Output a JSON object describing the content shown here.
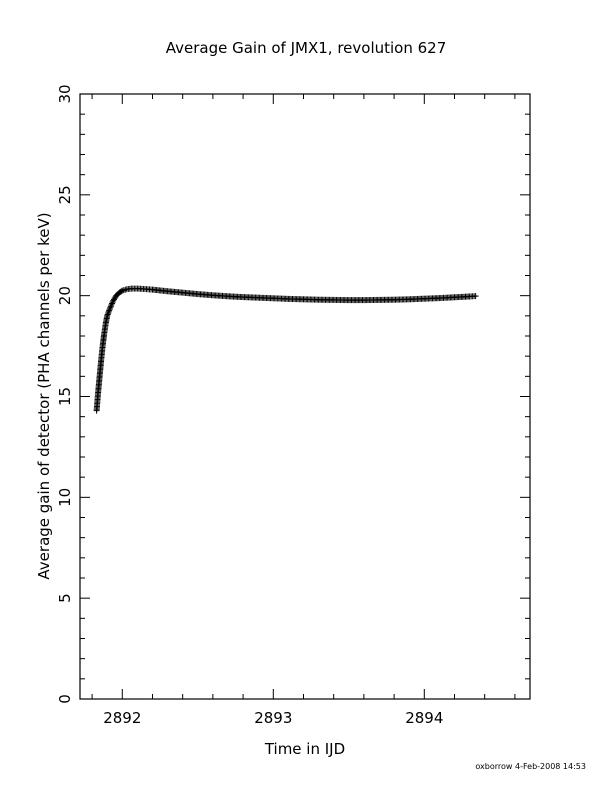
{
  "chart_data": {
    "type": "scatter",
    "title": "Average Gain of JMX1, revolution 627",
    "xlabel": "Time in IJD",
    "ylabel": "Average gain of detector (PHA channels per keV)",
    "xlim": [
      2891.72,
      2894.7
    ],
    "ylim": [
      0,
      30
    ],
    "x_ticks": [
      2892,
      2893,
      2894
    ],
    "x_tick_labels": [
      "2892",
      "2893",
      "2894"
    ],
    "y_ticks": [
      0,
      5,
      10,
      15,
      20,
      25,
      30
    ],
    "y_tick_labels": [
      "0",
      "5",
      "10",
      "15",
      "20",
      "25",
      "30"
    ],
    "x_minor_step": 0.2,
    "y_minor_step": 1,
    "marker": "plus",
    "grid": false,
    "legend": "none",
    "series": [
      {
        "x": [
          2891.83,
          2891.84,
          2891.85,
          2891.86,
          2891.87,
          2891.88,
          2891.89,
          2891.9,
          2891.92,
          2891.94,
          2891.96,
          2891.98,
          2892.0,
          2892.03,
          2892.06,
          2892.1,
          2892.15,
          2892.2,
          2892.3,
          2892.4,
          2892.5,
          2892.6,
          2892.7,
          2892.8,
          2892.9,
          2893.0,
          2893.1,
          2893.2,
          2893.3,
          2893.4,
          2893.5,
          2893.6,
          2893.7,
          2893.8,
          2893.9,
          2894.0,
          2894.1,
          2894.2,
          2894.3,
          2894.34
        ],
        "y": [
          14.3,
          15.2,
          16.0,
          16.8,
          17.5,
          18.1,
          18.6,
          19.0,
          19.4,
          19.75,
          20.0,
          20.15,
          20.25,
          20.32,
          20.35,
          20.35,
          20.33,
          20.3,
          20.22,
          20.15,
          20.08,
          20.02,
          19.97,
          19.93,
          19.9,
          19.87,
          19.84,
          19.82,
          19.8,
          19.79,
          19.78,
          19.78,
          19.79,
          19.8,
          19.82,
          19.85,
          19.88,
          19.92,
          19.96,
          19.98
        ]
      }
    ]
  },
  "footer": {
    "stamp": "oxborrow  4-Feb-2008 14:53"
  }
}
